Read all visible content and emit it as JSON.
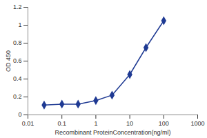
{
  "chart_data": {
    "type": "line",
    "x_label": "Recombinant ProteinConcentration(ng/ml)",
    "y_label": "OD 450",
    "x": [
      0.03,
      0.1,
      0.3,
      1,
      3,
      10,
      30,
      100
    ],
    "values": [
      0.11,
      0.12,
      0.12,
      0.16,
      0.22,
      0.45,
      0.75,
      1.05
    ],
    "color": "#1f3a93",
    "marker": "diamond",
    "log": "x",
    "grid": false,
    "xlim": [
      0.01,
      1000
    ],
    "xticks": [
      0.01,
      0.1,
      1,
      10,
      100,
      1000
    ],
    "ylim": [
      0,
      1.2
    ],
    "yticks": [
      0,
      0.2,
      0.4,
      0.6,
      0.8,
      1,
      1.2
    ]
  }
}
